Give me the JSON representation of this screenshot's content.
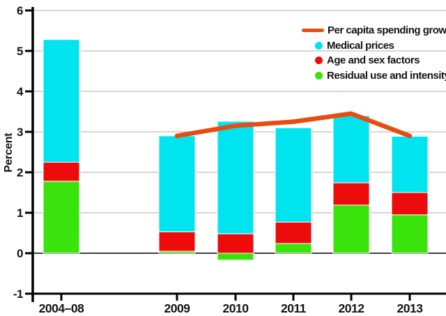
{
  "chart_data": {
    "type": "bar",
    "subtype": "stacked-bars-with-line-overlay",
    "title": "",
    "xlabel": "",
    "ylabel": "Percent",
    "ylim": [
      -1,
      6
    ],
    "yticks": [
      -1,
      0,
      1,
      2,
      3,
      4,
      5,
      6
    ],
    "grid": true,
    "legend_position": "top-right",
    "categories": [
      "2004–08",
      "2009",
      "2010",
      "2011",
      "2012",
      "2013"
    ],
    "series": [
      {
        "name": "Residual use and intensity",
        "color": "#3be30d",
        "values": [
          1.78,
          0.05,
          -0.17,
          0.24,
          1.19,
          0.95
        ]
      },
      {
        "name": "Age and sex factors",
        "color": "#ee0b0b",
        "values": [
          0.47,
          0.48,
          0.48,
          0.53,
          0.55,
          0.55
        ]
      },
      {
        "name": "Medical prices",
        "color": "#00e4f0",
        "values": [
          3.03,
          2.37,
          2.78,
          2.33,
          1.66,
          1.39
        ]
      }
    ],
    "stack_totals": [
      5.28,
      2.9,
      3.26,
      3.1,
      3.4,
      2.89
    ],
    "line_series": {
      "name": "Per capita spending growth",
      "color": "#e84c0f",
      "x": [
        "2009",
        "2010",
        "2011",
        "2012",
        "2013"
      ],
      "values": [
        2.9,
        3.15,
        3.25,
        3.45,
        2.9
      ]
    },
    "colors": {
      "grid": "#c8c8c8",
      "zero_line": "#404040",
      "axis": "#000000",
      "text": "#141414",
      "background": "#ffffff"
    }
  }
}
